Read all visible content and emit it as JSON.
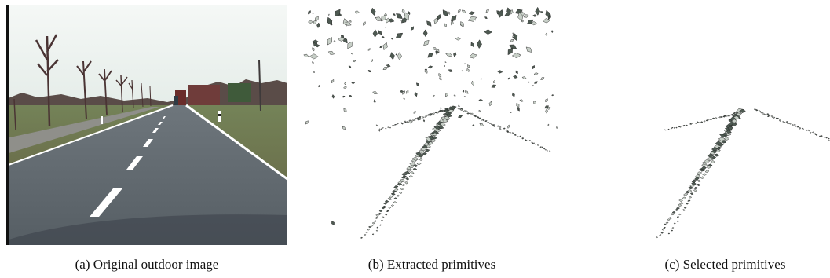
{
  "figure": {
    "panels": [
      {
        "id": "a",
        "caption": "(a) Original outdoor image"
      },
      {
        "id": "b",
        "caption": "(b) Extracted primitives"
      },
      {
        "id": "c",
        "caption": "(c) Selected primitives"
      }
    ]
  },
  "colors": {
    "sky": "#eef3f1",
    "asphalt": "#5f6870",
    "grass": "#6d7a4a",
    "trees": "#4b3a3a",
    "lane_marking": "#ffffff",
    "primitive_dark": "#4e5a52",
    "primitive_light": "#c7cfc7"
  }
}
